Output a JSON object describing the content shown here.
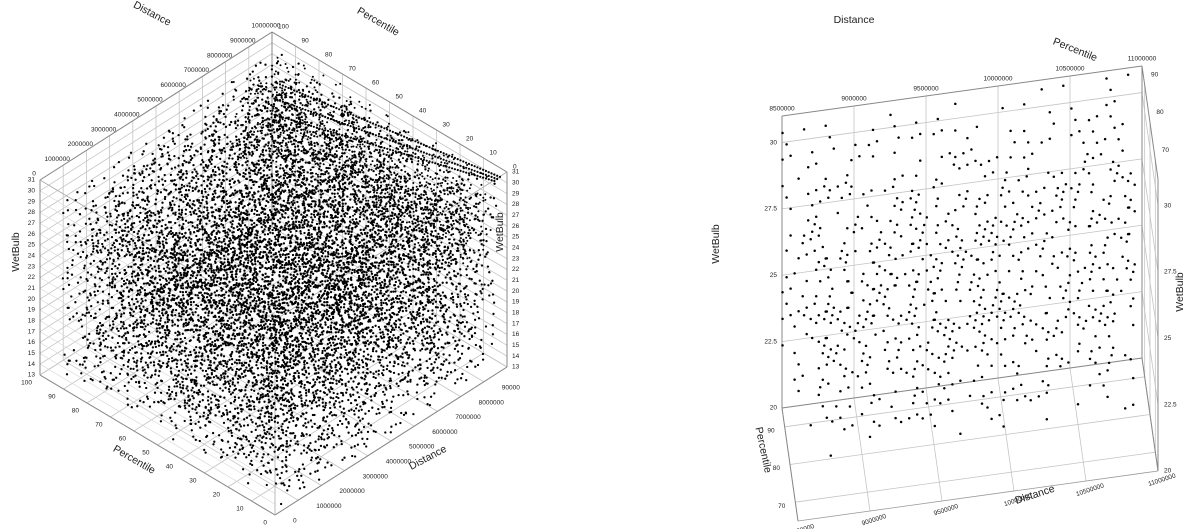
{
  "chart_data": [
    {
      "type": "scatter",
      "projection": "3d",
      "axes": {
        "x": {
          "label": "Distance",
          "range": [
            0,
            10000000
          ],
          "ticks": [
            "0",
            "1000000",
            "2000000",
            "3000000",
            "4000000",
            "5000000",
            "6000000",
            "7000000",
            "8000000",
            "9000000",
            "10000000"
          ]
        },
        "y": {
          "label": "Percentile",
          "range": [
            0,
            100
          ],
          "ticks": [
            "0",
            "10",
            "20",
            "30",
            "40",
            "50",
            "60",
            "70",
            "80",
            "90",
            "100"
          ]
        },
        "z": {
          "label": "WetBulb",
          "range": [
            13,
            31
          ],
          "ticks": [
            "13",
            "14",
            "15",
            "16",
            "17",
            "18",
            "19",
            "20",
            "21",
            "22",
            "23",
            "24",
            "25",
            "26",
            "27",
            "28",
            "29",
            "30",
            "31"
          ]
        }
      },
      "grid": true,
      "marker_color": "#000000",
      "wetbulb_levels": [
        13.5,
        14.5,
        15.5,
        16.5,
        17.5,
        18.5,
        19.5,
        20.5,
        21.5,
        22.5,
        23.5,
        24.5,
        25.5,
        26.5,
        27.5,
        28.5,
        29.5
      ],
      "dense_band": {
        "distance_range": [
          7500000,
          9900000
        ],
        "wetbulb_range": [
          23,
          30.5
        ]
      }
    },
    {
      "type": "scatter",
      "projection": "3d",
      "axes": {
        "x": {
          "label": "Distance",
          "range": [
            8500000,
            11000000
          ],
          "ticks": [
            "8500000",
            "9000000",
            "9500000",
            "10000000",
            "10500000",
            "11000000"
          ]
        },
        "y": {
          "label": "Percentile",
          "range": [
            65,
            95
          ],
          "ticks": [
            "70",
            "80",
            "90"
          ]
        },
        "z": {
          "label": "WetBulb",
          "range": [
            20,
            31
          ],
          "ticks": [
            "20",
            "22.5",
            "25",
            "27.5",
            "30"
          ]
        }
      },
      "grid": true,
      "marker_color": "#000000",
      "wetbulb_levels": [
        22.5,
        23.5,
        24.5,
        25.5,
        26.5,
        27.5,
        28.5,
        29.5,
        30.5
      ],
      "distance_grid": [
        8500000,
        8650000,
        8800000,
        8950000,
        9100000,
        9250000,
        9400000,
        9550000,
        9700000,
        9850000,
        10000000,
        10150000,
        10300000,
        10450000,
        10600000,
        10750000,
        10900000
      ]
    }
  ]
}
